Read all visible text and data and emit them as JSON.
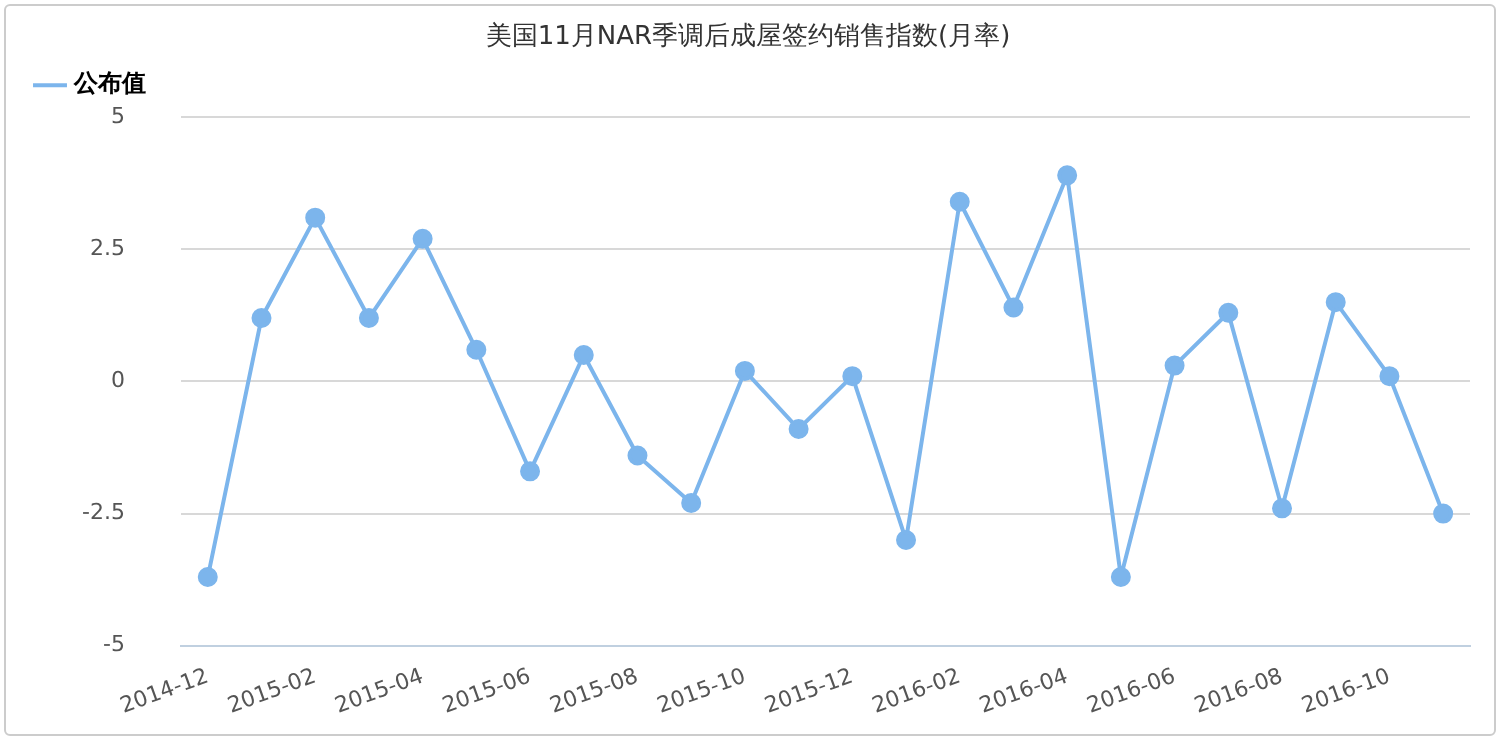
{
  "chart_data": {
    "type": "line",
    "title": "美国11月NAR季调后成屋签约销售指数(月率)",
    "categories": [
      "2014-12",
      null,
      "2015-02",
      null,
      "2015-04",
      null,
      "2015-06",
      null,
      "2015-08",
      null,
      "2015-10",
      null,
      "2015-12",
      null,
      "2016-02",
      null,
      "2016-04",
      null,
      "2016-06",
      null,
      "2016-08",
      null,
      "2016-10",
      null
    ],
    "series": [
      {
        "name": "公布值",
        "color": "#7cb5ec",
        "values": [
          -3.7,
          1.2,
          3.1,
          1.2,
          2.7,
          0.6,
          -1.7,
          0.5,
          -1.4,
          -2.3,
          0.2,
          -0.9,
          0.1,
          -3.0,
          3.4,
          1.4,
          3.9,
          -3.7,
          0.3,
          1.3,
          -2.4,
          1.5,
          0.1,
          -2.5
        ]
      }
    ],
    "ylim": [
      -5,
      5
    ],
    "yticks": [
      -5,
      -2.5,
      0,
      2.5,
      5
    ],
    "grid": "y",
    "legend": "top left",
    "marker": "circle",
    "line_style": "solid"
  }
}
